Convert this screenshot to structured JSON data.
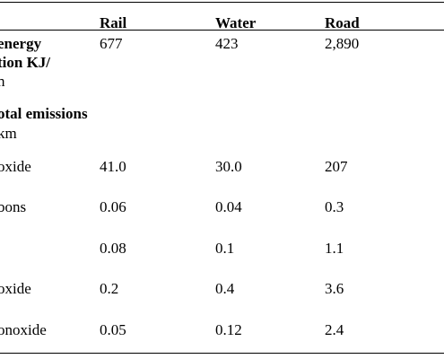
{
  "table": {
    "headers": {
      "col1": "Rail",
      "col2": "Water",
      "col3": "Road"
    },
    "energy_row": {
      "label_line1": "energy",
      "label_line2": "tion KJ/",
      "label_line3": "n",
      "values": [
        "677",
        "423",
        "2,890"
      ]
    },
    "section": {
      "line1": "otal emissions",
      "line2": "km"
    },
    "rows": [
      {
        "label": "oxide",
        "values": [
          "41.0",
          "30.0",
          "207"
        ]
      },
      {
        "label": "bons",
        "values": [
          "0.06",
          "0.04",
          "0.3"
        ]
      },
      {
        "label": "",
        "values": [
          "0.08",
          "0.1",
          "1.1"
        ]
      },
      {
        "label": "oxide",
        "values": [
          "0.2",
          "0.4",
          "3.6"
        ]
      },
      {
        "label": "onoxide",
        "values": [
          "0.05",
          "0.12",
          "2.4"
        ]
      }
    ]
  }
}
